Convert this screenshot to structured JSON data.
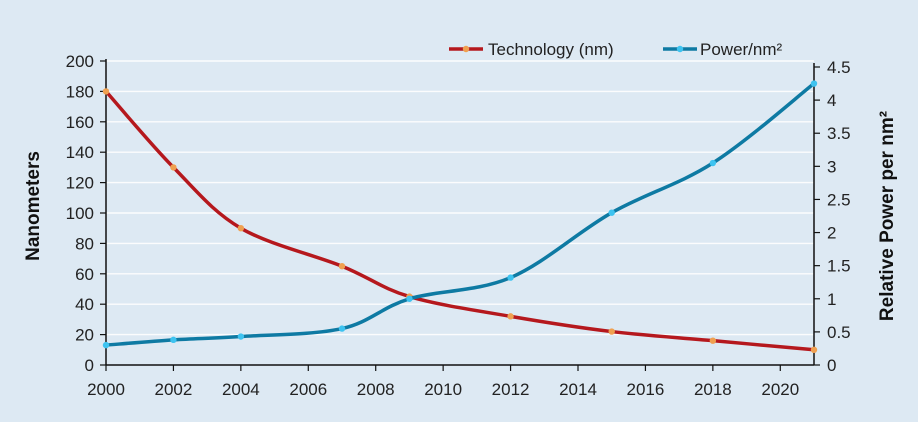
{
  "chart_data": {
    "type": "line",
    "title": "",
    "xlabel": "",
    "ylabel": "Nanometers",
    "y2label": "Relative Power per nm²",
    "x_ticks": [
      "2000",
      "2002",
      "2004",
      "2006",
      "2008",
      "2010",
      "2012",
      "2014",
      "2016",
      "2018",
      "2020"
    ],
    "y_ticks": [
      "0",
      "20",
      "40",
      "60",
      "80",
      "100",
      "120",
      "140",
      "160",
      "180",
      "200"
    ],
    "y2_ticks": [
      "0",
      "0.5",
      "1",
      "1.5",
      "2",
      "2.5",
      "3",
      "3.5",
      "4",
      "4.5"
    ],
    "xlim": [
      2000,
      2021
    ],
    "ylim": [
      0,
      200
    ],
    "y2lim": [
      0,
      4.5
    ],
    "grid": "horizontal",
    "legend_position": "top-right",
    "series": [
      {
        "name": "Technology (nm)",
        "axis": "left",
        "color": "#b5181d",
        "marker_color": "#f0a050",
        "x": [
          2000,
          2002,
          2004,
          2007,
          2009,
          2012,
          2015,
          2018,
          2021
        ],
        "y": [
          180,
          130,
          90,
          65,
          45,
          32,
          22,
          16,
          10
        ]
      },
      {
        "name": "Power/nm²",
        "axis": "right",
        "color": "#0e7aa3",
        "marker_color": "#3ec3f0",
        "x": [
          2000,
          2002,
          2004,
          2007,
          2009,
          2012,
          2015,
          2018,
          2021
        ],
        "y": [
          0.3,
          0.38,
          0.43,
          0.55,
          1.0,
          1.32,
          2.3,
          3.05,
          4.25
        ]
      }
    ]
  }
}
